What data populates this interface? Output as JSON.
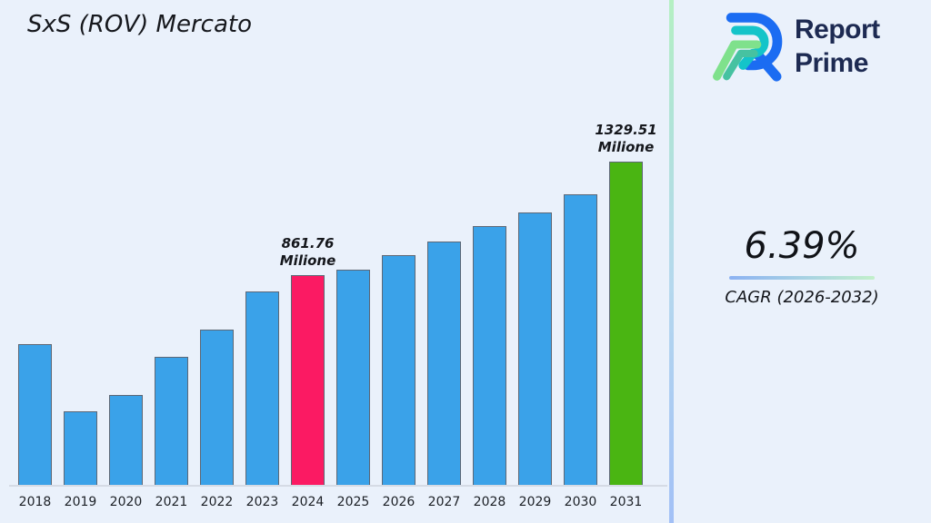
{
  "title": "SxS (ROV) Mercato",
  "logo": {
    "line1": "Report",
    "line2": "Prime",
    "mark_colors": {
      "blue": "#1b6cf2",
      "teal": "#14c4c9",
      "green_light": "#7fe18c",
      "green_teal": "#46c2a1"
    }
  },
  "cagr": {
    "value": "6.39%",
    "label": "CAGR (2026-2032)"
  },
  "chart_data": {
    "type": "bar",
    "title": "SxS (ROV) Mercato",
    "xlabel": "",
    "ylabel": "",
    "unit": "Milione",
    "ylim": [
      0,
      1400
    ],
    "grid": false,
    "legend": false,
    "categories": [
      "2018",
      "2019",
      "2020",
      "2021",
      "2022",
      "2023",
      "2024",
      "2025",
      "2026",
      "2027",
      "2028",
      "2029",
      "2030",
      "2031"
    ],
    "values": [
      580,
      302,
      370,
      525,
      640,
      795,
      861.76,
      885,
      945,
      1000,
      1065,
      1120,
      1195,
      1329.51
    ],
    "colors": {
      "default": "#3aa2e9",
      "highlight_2024": "#fb1a63",
      "highlight_2031": "#4ab512"
    },
    "bars": [
      {
        "year": "2018",
        "value": 580,
        "color": "#3aa2e9"
      },
      {
        "year": "2019",
        "value": 302,
        "color": "#3aa2e9"
      },
      {
        "year": "2020",
        "value": 370,
        "color": "#3aa2e9"
      },
      {
        "year": "2021",
        "value": 525,
        "color": "#3aa2e9"
      },
      {
        "year": "2022",
        "value": 640,
        "color": "#3aa2e9"
      },
      {
        "year": "2023",
        "value": 795,
        "color": "#3aa2e9"
      },
      {
        "year": "2024",
        "value": 861.76,
        "color": "#fb1a63",
        "label": [
          "861.76",
          "Milione"
        ]
      },
      {
        "year": "2025",
        "value": 885,
        "color": "#3aa2e9"
      },
      {
        "year": "2026",
        "value": 945,
        "color": "#3aa2e9"
      },
      {
        "year": "2027",
        "value": 1000,
        "color": "#3aa2e9"
      },
      {
        "year": "2028",
        "value": 1065,
        "color": "#3aa2e9"
      },
      {
        "year": "2029",
        "value": 1120,
        "color": "#3aa2e9"
      },
      {
        "year": "2030",
        "value": 1195,
        "color": "#3aa2e9"
      },
      {
        "year": "2031",
        "value": 1329.51,
        "color": "#4ab512",
        "label": [
          "1329.51",
          "Milione"
        ]
      }
    ]
  }
}
